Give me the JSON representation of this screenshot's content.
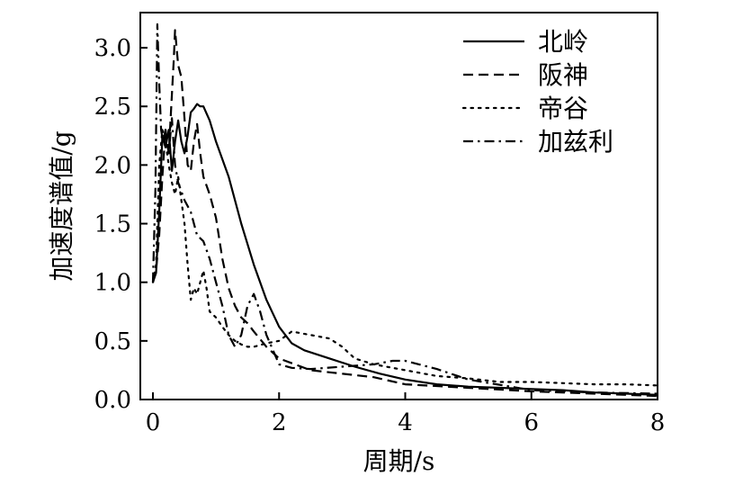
{
  "chart_data": {
    "type": "line",
    "title": "",
    "xlabel": "周期/s",
    "ylabel": "加速度谱值/g",
    "xlim": [
      -0.2,
      8
    ],
    "ylim": [
      0,
      3.3
    ],
    "xticks": [
      0,
      2,
      4,
      6,
      8
    ],
    "yticks": [
      0.0,
      0.5,
      1.0,
      1.5,
      2.0,
      2.5,
      3.0
    ],
    "xtick_labels": [
      "0",
      "2",
      "4",
      "6",
      "8"
    ],
    "ytick_labels": [
      "0.0",
      "0.5",
      "1.0",
      "1.5",
      "2.0",
      "2.5",
      "3.0"
    ],
    "grid": false,
    "legend_position": "top-right",
    "series": [
      {
        "name": "北岭",
        "dash": "solid",
        "x": [
          0,
          0.05,
          0.1,
          0.15,
          0.2,
          0.25,
          0.3,
          0.35,
          0.4,
          0.45,
          0.5,
          0.55,
          0.6,
          0.65,
          0.7,
          0.75,
          0.8,
          0.9,
          1.0,
          1.2,
          1.4,
          1.6,
          1.8,
          2.0,
          2.2,
          2.4,
          2.8,
          3.2,
          3.6,
          4.0,
          4.5,
          5.0,
          5.5,
          6.0,
          6.5,
          7.0,
          7.5,
          8.0
        ],
        "y": [
          1.0,
          1.08,
          1.6,
          2.25,
          2.15,
          2.3,
          1.95,
          2.2,
          2.38,
          2.2,
          2.1,
          2.25,
          2.45,
          2.48,
          2.52,
          2.5,
          2.5,
          2.38,
          2.2,
          1.9,
          1.5,
          1.15,
          0.85,
          0.62,
          0.48,
          0.42,
          0.35,
          0.28,
          0.22,
          0.17,
          0.13,
          0.11,
          0.1,
          0.09,
          0.08,
          0.06,
          0.05,
          0.04
        ]
      },
      {
        "name": "阪神",
        "dash": "dashed",
        "x": [
          0,
          0.05,
          0.1,
          0.15,
          0.2,
          0.25,
          0.3,
          0.33,
          0.35,
          0.4,
          0.45,
          0.5,
          0.55,
          0.6,
          0.65,
          0.7,
          0.75,
          0.8,
          0.9,
          1.0,
          1.1,
          1.2,
          1.3,
          1.4,
          1.5,
          1.6,
          1.8,
          2.0,
          2.5,
          3.0,
          3.5,
          4.0,
          5.0,
          6.0,
          7.0,
          8.0
        ],
        "y": [
          1.0,
          1.1,
          1.4,
          1.9,
          2.3,
          2.1,
          2.6,
          2.9,
          3.15,
          2.85,
          2.75,
          2.4,
          2.0,
          1.95,
          2.2,
          2.35,
          2.1,
          1.9,
          1.75,
          1.55,
          1.2,
          0.95,
          0.8,
          0.7,
          0.65,
          0.58,
          0.45,
          0.35,
          0.25,
          0.22,
          0.19,
          0.13,
          0.1,
          0.07,
          0.05,
          0.03
        ]
      },
      {
        "name": "帝谷",
        "dash": "dotted",
        "x": [
          0,
          0.05,
          0.1,
          0.15,
          0.2,
          0.25,
          0.3,
          0.35,
          0.4,
          0.45,
          0.5,
          0.55,
          0.6,
          0.65,
          0.7,
          0.75,
          0.8,
          0.85,
          0.9,
          1.0,
          1.1,
          1.2,
          1.3,
          1.4,
          1.5,
          1.6,
          1.8,
          2.0,
          2.2,
          2.5,
          2.8,
          3.0,
          3.2,
          3.5,
          4.0,
          4.5,
          5.0,
          5.5,
          6.0,
          6.5,
          7.0,
          7.5,
          8.0
        ],
        "y": [
          1.0,
          1.15,
          2.0,
          2.3,
          2.2,
          2.0,
          1.85,
          1.75,
          1.9,
          1.7,
          1.5,
          1.15,
          0.85,
          0.95,
          0.9,
          1.0,
          1.1,
          0.95,
          0.75,
          0.7,
          0.62,
          0.55,
          0.5,
          0.47,
          0.45,
          0.45,
          0.48,
          0.5,
          0.58,
          0.55,
          0.52,
          0.45,
          0.35,
          0.3,
          0.25,
          0.2,
          0.18,
          0.15,
          0.15,
          0.14,
          0.13,
          0.13,
          0.12
        ]
      },
      {
        "name": "加兹利",
        "dash": "dashdot",
        "x": [
          0,
          0.04,
          0.07,
          0.1,
          0.13,
          0.16,
          0.2,
          0.25,
          0.3,
          0.35,
          0.4,
          0.5,
          0.6,
          0.7,
          0.8,
          0.9,
          1.0,
          1.1,
          1.2,
          1.3,
          1.4,
          1.5,
          1.6,
          1.7,
          1.8,
          2.0,
          2.2,
          2.5,
          3.0,
          3.5,
          3.8,
          4.0,
          4.5,
          5.0,
          6.0,
          7.0,
          8.0
        ],
        "y": [
          1.0,
          1.8,
          3.2,
          2.7,
          2.3,
          2.2,
          2.3,
          2.1,
          2.4,
          2.0,
          1.85,
          1.7,
          1.6,
          1.4,
          1.35,
          1.2,
          1.0,
          0.8,
          0.55,
          0.45,
          0.55,
          0.8,
          0.9,
          0.75,
          0.55,
          0.3,
          0.27,
          0.26,
          0.28,
          0.3,
          0.33,
          0.33,
          0.26,
          0.17,
          0.08,
          0.06,
          0.05
        ]
      }
    ]
  }
}
